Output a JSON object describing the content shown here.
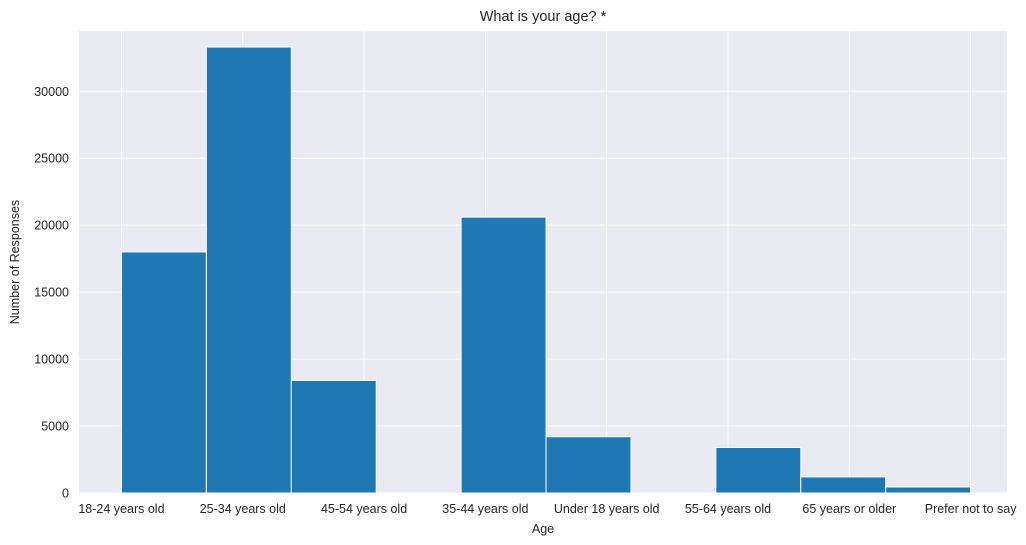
{
  "chart_data": {
    "type": "bar",
    "title": "What is your age? *",
    "xlabel": "Age",
    "ylabel": "Number of Responses",
    "ylim": [
      0,
      34500
    ],
    "yticks": [
      0,
      5000,
      10000,
      15000,
      20000,
      25000,
      30000
    ],
    "xticklabels": [
      "18-24 years old",
      "25-34 years old",
      "45-54 years old",
      "35-44 years old",
      "Under 18 years old",
      "55-64 years old",
      "65 years or older",
      "Prefer not to say"
    ],
    "bins": [
      {
        "value": 18000
      },
      {
        "value": 33300
      },
      {
        "value": 8400
      },
      {
        "value": 0
      },
      {
        "value": 20600
      },
      {
        "value": 4200
      },
      {
        "value": 0
      },
      {
        "value": 3400
      },
      {
        "value": 1200
      },
      {
        "value": 450
      }
    ],
    "grid": true,
    "colors": {
      "bar": "#1f77b4",
      "background": "#eaeaf2",
      "grid": "#ffffff",
      "text": "#262626"
    }
  }
}
